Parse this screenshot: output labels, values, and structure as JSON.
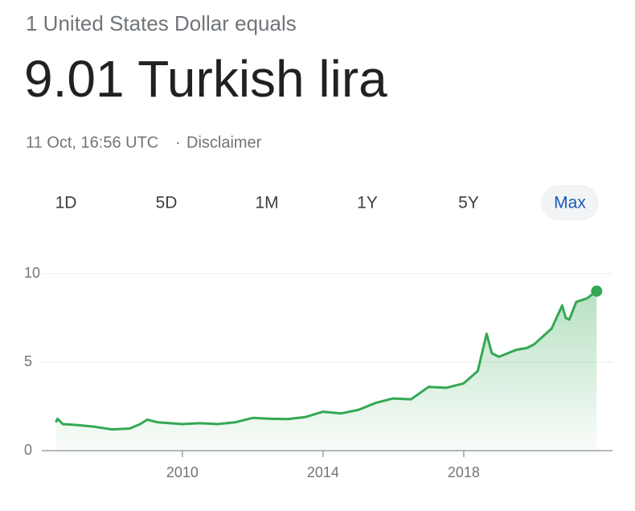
{
  "header": {
    "subtitle": "1 United States Dollar equals",
    "value": "9.01 Turkish lira",
    "timestamp": "11 Oct, 16:56 UTC",
    "separator": "·",
    "disclaimer": "Disclaimer"
  },
  "tabs": [
    "1D",
    "5D",
    "1M",
    "1Y",
    "5Y",
    "Max"
  ],
  "selected_tab": "Max",
  "chart_data": {
    "type": "line",
    "x": [
      2006.4,
      2006.45,
      2006.6,
      2007.0,
      2007.5,
      2008.0,
      2008.5,
      2008.8,
      2009.0,
      2009.3,
      2010.0,
      2010.5,
      2011.0,
      2011.5,
      2012.0,
      2012.5,
      2013.0,
      2013.5,
      2014.0,
      2014.5,
      2015.0,
      2015.5,
      2016.0,
      2016.5,
      2017.0,
      2017.5,
      2018.0,
      2018.4,
      2018.65,
      2018.8,
      2019.0,
      2019.5,
      2019.8,
      2020.0,
      2020.5,
      2020.8,
      2020.9,
      2021.0,
      2021.2,
      2021.5,
      2021.78
    ],
    "series": [
      {
        "color": "#34a853",
        "values": [
          1.6,
          1.8,
          1.5,
          1.45,
          1.35,
          1.2,
          1.25,
          1.5,
          1.75,
          1.6,
          1.5,
          1.55,
          1.5,
          1.6,
          1.85,
          1.8,
          1.78,
          1.9,
          2.2,
          2.1,
          2.3,
          2.7,
          2.95,
          2.9,
          3.6,
          3.55,
          3.8,
          4.5,
          6.6,
          5.5,
          5.3,
          5.7,
          5.8,
          6.0,
          6.9,
          8.2,
          7.5,
          7.4,
          8.4,
          8.6,
          9.01
        ]
      }
    ],
    "xlim": [
      2006.14,
      2022.23
    ],
    "xticks": [
      2010,
      2014,
      2018
    ],
    "ylim": [
      0,
      10
    ],
    "yticks": [
      0,
      5,
      10
    ],
    "grid": true
  }
}
